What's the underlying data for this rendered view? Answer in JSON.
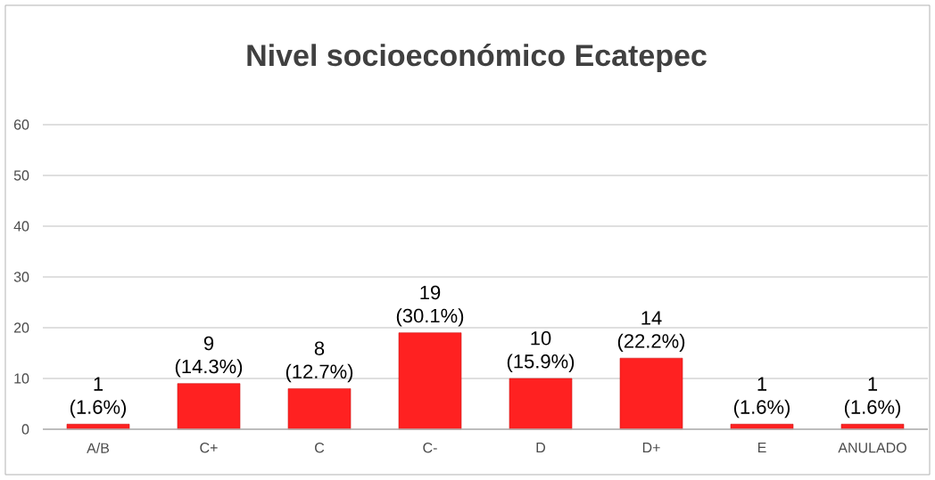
{
  "chart_data": {
    "type": "bar",
    "title": "Nivel socioeconómico Ecatepec",
    "categories": [
      "A/B",
      "C+",
      "C",
      "C-",
      "D",
      "D+",
      "E",
      "ANULADO"
    ],
    "values": [
      1,
      9,
      8,
      19,
      10,
      14,
      1,
      1
    ],
    "value_labels": [
      "1 (1.6%)",
      "9 (14.3%)",
      "8 (12.7%)",
      "19 (30.1%)",
      "10 (15.9%)",
      "14 (22.2%)",
      "1 (1.6%)",
      "1 (1.6%)"
    ],
    "color": "#ff2121",
    "ylim": [
      0,
      60
    ],
    "yticks": [
      0,
      10,
      20,
      30,
      40,
      50,
      60
    ],
    "grid": "y"
  }
}
